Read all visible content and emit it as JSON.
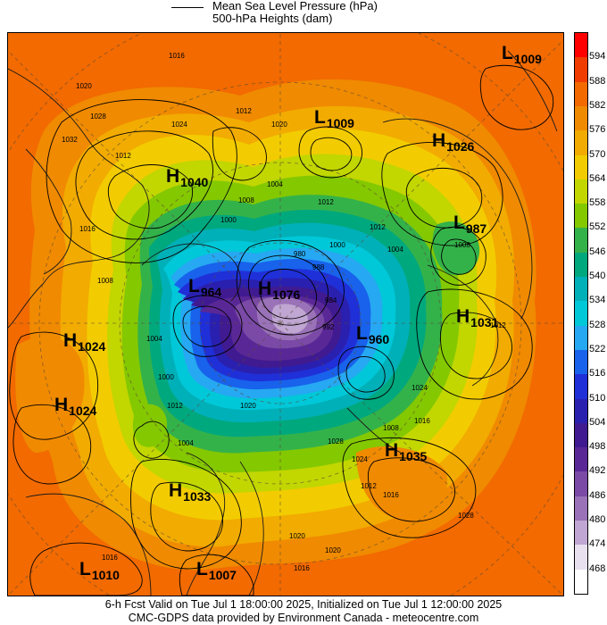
{
  "legend": {
    "mslp_label": "Mean Sea Level Pressure (hPa)",
    "heights_label": "500-hPa Heights (dam)"
  },
  "colorbar": {
    "levels": [
      "594",
      "588",
      "582",
      "576",
      "570",
      "564",
      "558",
      "552",
      "546",
      "540",
      "534",
      "528",
      "522",
      "516",
      "510",
      "504",
      "498",
      "492",
      "486",
      "480",
      "474",
      "468"
    ],
    "colors": [
      "#ff0000",
      "#f03c00",
      "#f26a00",
      "#f08a00",
      "#f2ab00",
      "#f2cc00",
      "#c2d600",
      "#84c800",
      "#34b24a",
      "#00a87e",
      "#00b0b8",
      "#00c8d8",
      "#26a8f2",
      "#1862ec",
      "#2030d8",
      "#2a20b0",
      "#401a90",
      "#5a2896",
      "#7a4aa6",
      "#9a72b8",
      "#c0a6d2",
      "#e8e0ee",
      "#ffffff"
    ]
  },
  "systems": [
    {
      "type": "L",
      "value": "1009"
    },
    {
      "type": "L",
      "value": "1009"
    },
    {
      "type": "H",
      "value": "1026"
    },
    {
      "type": "H",
      "value": "1040"
    },
    {
      "type": "L",
      "value": "987"
    },
    {
      "type": "L",
      "value": "964"
    },
    {
      "type": "H",
      "value": "1076"
    },
    {
      "type": "H",
      "value": "1031"
    },
    {
      "type": "L",
      "value": "960"
    },
    {
      "type": "H",
      "value": "1024"
    },
    {
      "type": "H",
      "value": "1024"
    },
    {
      "type": "H",
      "value": "1035"
    },
    {
      "type": "H",
      "value": "1033"
    },
    {
      "type": "L",
      "value": "1010"
    },
    {
      "type": "L",
      "value": "1007"
    }
  ],
  "isobar_labels": [
    "1016",
    "1020",
    "1028",
    "1032",
    "1024",
    "1012",
    "1020",
    "1012",
    "1004",
    "1008",
    "1000",
    "1012",
    "1016",
    "1000",
    "1012",
    "1004",
    "1008",
    "992",
    "984",
    "988",
    "980",
    "1008",
    "1004",
    "1000",
    "1012",
    "1004",
    "1024",
    "1008",
    "1016",
    "1028",
    "1028",
    "1016",
    "1012",
    "1020",
    "1016",
    "1020",
    "1024",
    "1020",
    "1016",
    "1012"
  ],
  "footer": {
    "line1": "6-h Fcst Valid on Tue Jul  1 18:00:00 2025, Initialized on Tue Jul  1 12:00:00 2025",
    "line2": "CMC-GDPS data provided by Environment Canada - meteocentre.com"
  }
}
